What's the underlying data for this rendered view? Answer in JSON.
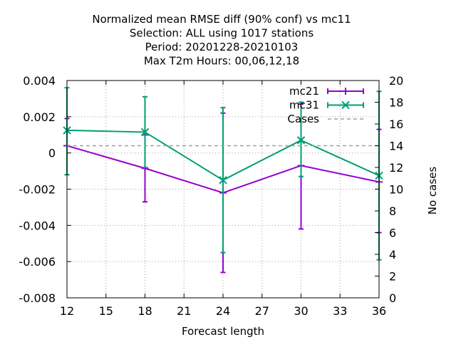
{
  "chart_data": {
    "type": "line",
    "title_lines": [
      "Normalized mean RMSE diff (90% conf) vs mc11",
      "Selection: ALL using  1017 stations",
      "Period: 20201228-20210103",
      "Max T2m   Hours:  00,06,12,18"
    ],
    "xlabel": "Forecast length",
    "ylabel": "",
    "y2label": "No cases",
    "x_ticks": [
      12,
      15,
      18,
      21,
      24,
      27,
      30,
      33,
      36
    ],
    "y_ticks": [
      -0.008,
      -0.006,
      -0.004,
      -0.002,
      0,
      0.002,
      0.004
    ],
    "y_tick_labels": [
      "-0.008",
      "-0.006",
      "-0.004",
      "-0.002",
      "0",
      "0.002",
      "0.004"
    ],
    "y2_ticks": [
      0,
      2,
      4,
      6,
      8,
      10,
      12,
      14,
      16,
      18,
      20
    ],
    "xlim": [
      12,
      36
    ],
    "ylim": [
      -0.008,
      0.004
    ],
    "y2lim": [
      0,
      20
    ],
    "grid": true,
    "legend_position": "top-right",
    "series": [
      {
        "name": "mc21",
        "color": "#9400d3",
        "marker": "plus",
        "x": [
          12,
          18,
          24,
          30,
          36
        ],
        "y": [
          0.0004,
          -0.00085,
          -0.0022,
          -0.0007,
          -0.0016
        ],
        "err_low": [
          -0.0012,
          -0.0027,
          -0.0066,
          -0.0042,
          -0.0044
        ],
        "err_high": [
          0.0019,
          0.001,
          0.0022,
          0.0027,
          0.0013
        ]
      },
      {
        "name": "mc31",
        "color": "#009e73",
        "marker": "cross",
        "x": [
          12,
          18,
          24,
          30,
          36
        ],
        "y": [
          0.00125,
          0.00115,
          -0.0015,
          0.0007,
          -0.00125
        ],
        "err_low": [
          -0.0012,
          -0.0008,
          -0.0055,
          -0.0013,
          -0.0059
        ],
        "err_high": [
          0.0036,
          0.0031,
          0.0025,
          0.0028,
          0.0034
        ]
      },
      {
        "name": "Cases",
        "color": "#a0a0a0",
        "axis": "y2",
        "x": [
          12,
          36
        ],
        "y": [
          14,
          14
        ]
      }
    ]
  }
}
